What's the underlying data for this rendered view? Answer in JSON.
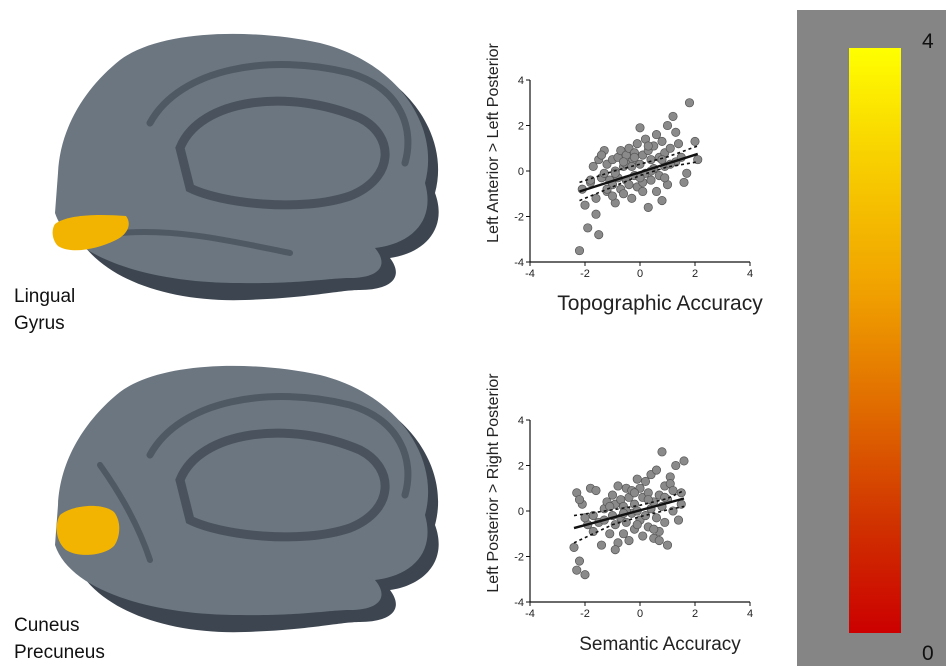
{
  "regions": [
    {
      "label": "Lingual\nGyrus"
    },
    {
      "label": "Cuneus\nPrecuneus"
    }
  ],
  "colors": {
    "brain": "#6b7681",
    "brain_dark": "#3d4650",
    "highlight": "#f2b400",
    "point": "#8a8a8a"
  },
  "colorbar": {
    "max_label": "4",
    "min_label": "0",
    "colors": [
      "#ffff00",
      "#f0a000",
      "#cc0000"
    ]
  },
  "chart_data": [
    {
      "type": "scatter",
      "xlabel": "Topographic Accuracy",
      "ylabel": "Left Anterior > Left Posterior",
      "xlim": [
        -4,
        4
      ],
      "ylim": [
        -4,
        4
      ],
      "xticks": [
        "-4",
        "-2",
        "0",
        "2",
        "4"
      ],
      "yticks": [
        "-4",
        "-2",
        "0",
        "2",
        "4"
      ],
      "fit": {
        "x": [
          -2.2,
          2.1
        ],
        "y": [
          -0.9,
          0.75
        ]
      },
      "ci_upper": {
        "x": [
          -2.2,
          -1,
          0,
          1,
          2.1
        ],
        "y": [
          -0.5,
          -0.02,
          0.3,
          0.62,
          1.1
        ]
      },
      "ci_lower": {
        "x": [
          -2.2,
          -1,
          0,
          1,
          2.1
        ],
        "y": [
          -1.3,
          -0.7,
          -0.2,
          0.18,
          0.4
        ]
      },
      "points": {
        "x": [
          -2.1,
          -1.9,
          -1.8,
          -1.7,
          -1.6,
          -1.5,
          -1.5,
          -1.4,
          -1.3,
          -1.2,
          -1.2,
          -1.1,
          -1.0,
          -1.0,
          -0.9,
          -0.9,
          -0.8,
          -0.8,
          -0.7,
          -0.7,
          -0.6,
          -0.6,
          -0.5,
          -0.5,
          -0.4,
          -0.4,
          -0.3,
          -0.3,
          -0.2,
          -0.2,
          -0.1,
          -0.1,
          0.0,
          0.0,
          0.1,
          0.1,
          0.2,
          0.2,
          0.3,
          0.3,
          0.4,
          0.4,
          0.5,
          0.5,
          0.6,
          0.6,
          0.7,
          0.7,
          0.8,
          0.8,
          0.9,
          0.9,
          1.0,
          1.0,
          1.1,
          1.2,
          1.3,
          1.4,
          1.5,
          1.7,
          1.8,
          2.0,
          -2.0,
          -1.6,
          -1.3,
          -0.9,
          -0.5,
          -0.2,
          0.1,
          0.5,
          0.9,
          1.3,
          -1.8,
          -1.4,
          -1.0,
          -0.6,
          0.0,
          0.4,
          0.8,
          1.6,
          2.1,
          -2.2,
          -1.2,
          -0.3,
          0.3,
          1.1
        ],
        "y": [
          -0.8,
          -2.5,
          -0.5,
          0.2,
          -1.2,
          0.5,
          -2.8,
          -0.3,
          -0.1,
          0.3,
          -0.9,
          -0.4,
          0.5,
          -0.6,
          0.0,
          -1.4,
          0.6,
          -0.3,
          0.9,
          -0.8,
          0.2,
          -1.0,
          0.7,
          -0.4,
          1.0,
          -0.6,
          0.4,
          -1.2,
          0.8,
          -0.2,
          1.2,
          -0.7,
          1.9,
          0.3,
          0.7,
          -0.5,
          1.4,
          -0.1,
          0.9,
          -1.6,
          0.5,
          -0.4,
          1.1,
          0.1,
          1.6,
          -0.9,
          0.6,
          -0.2,
          1.3,
          -1.3,
          0.8,
          0.2,
          2.0,
          -0.6,
          1.0,
          2.4,
          0.4,
          1.2,
          0.6,
          -0.1,
          3.0,
          1.3,
          -1.5,
          -1.9,
          0.9,
          -0.1,
          0.3,
          0.6,
          -0.9,
          0.1,
          -0.3,
          1.7,
          -0.4,
          0.7,
          -1.1,
          0.4,
          -0.3,
          0.0,
          0.5,
          -0.5,
          0.5,
          -3.5,
          -0.8,
          0.2,
          1.1,
          0.3
        ]
      }
    },
    {
      "type": "scatter",
      "xlabel": "Semantic Accuracy",
      "ylabel": "Left Posterior > Right Posterior",
      "xlim": [
        -4,
        4
      ],
      "ylim": [
        -4,
        4
      ],
      "xticks": [
        "-4",
        "-2",
        "0",
        "2",
        "4"
      ],
      "yticks": [
        "-4",
        "-2",
        "0",
        "2",
        "4"
      ],
      "fit": {
        "x": [
          -2.4,
          1.6
        ],
        "y": [
          -0.75,
          0.55
        ]
      },
      "ci_upper": {
        "x": [
          -2.4,
          -1,
          0,
          1,
          1.6
        ],
        "y": [
          -0.2,
          0.05,
          0.25,
          0.55,
          0.9
        ]
      },
      "ci_lower": {
        "x": [
          -2.4,
          -1,
          0,
          1,
          1.6
        ],
        "y": [
          -1.4,
          -0.6,
          -0.25,
          0.05,
          0.2
        ]
      },
      "points": {
        "x": [
          -2.4,
          -2.3,
          -2.2,
          -2.1,
          -2.0,
          -1.9,
          -1.8,
          -1.7,
          -1.6,
          -1.5,
          -1.4,
          -1.3,
          -1.2,
          -1.1,
          -1.0,
          -1.0,
          -0.9,
          -0.9,
          -0.8,
          -0.8,
          -0.7,
          -0.7,
          -0.6,
          -0.6,
          -0.5,
          -0.5,
          -0.4,
          -0.4,
          -0.3,
          -0.3,
          -0.2,
          -0.2,
          -0.1,
          -0.1,
          0.0,
          0.0,
          0.1,
          0.1,
          0.2,
          0.2,
          0.3,
          0.3,
          0.4,
          0.4,
          0.5,
          0.5,
          0.6,
          0.6,
          0.7,
          0.7,
          0.8,
          0.8,
          0.9,
          0.9,
          1.0,
          1.0,
          1.1,
          1.2,
          1.3,
          1.4,
          1.5,
          1.6,
          -2.2,
          -1.7,
          -1.3,
          -0.9,
          -0.5,
          -0.1,
          0.3,
          0.7,
          1.1,
          1.5,
          -2.0,
          -1.1,
          -0.2,
          0.5,
          1.2,
          -2.3,
          -0.6,
          0.9
        ],
        "y": [
          -1.6,
          0.8,
          -2.2,
          0.3,
          -2.8,
          -0.6,
          1.0,
          -0.2,
          0.9,
          -0.5,
          -1.5,
          0.1,
          0.4,
          -1.0,
          0.7,
          -0.2,
          -0.6,
          0.3,
          1.1,
          -1.4,
          0.5,
          -0.3,
          0.2,
          -1.0,
          1.0,
          -0.5,
          0.6,
          -1.3,
          0.9,
          -0.1,
          0.3,
          -0.8,
          1.4,
          0.0,
          1.0,
          -0.4,
          0.6,
          -1.1,
          1.3,
          -0.2,
          0.8,
          -0.7,
          1.6,
          0.1,
          0.4,
          -1.2,
          1.8,
          -0.3,
          0.7,
          -0.9,
          2.6,
          0.2,
          1.1,
          -0.5,
          0.5,
          -1.5,
          1.5,
          0.0,
          2.0,
          -0.4,
          0.8,
          2.2,
          0.5,
          -0.9,
          -0.4,
          -1.7,
          0.0,
          -0.6,
          0.5,
          -1.3,
          1.2,
          0.3,
          -0.3,
          0.2,
          0.8,
          -0.8,
          0.9,
          -2.6,
          -0.1,
          0.6
        ]
      }
    }
  ]
}
